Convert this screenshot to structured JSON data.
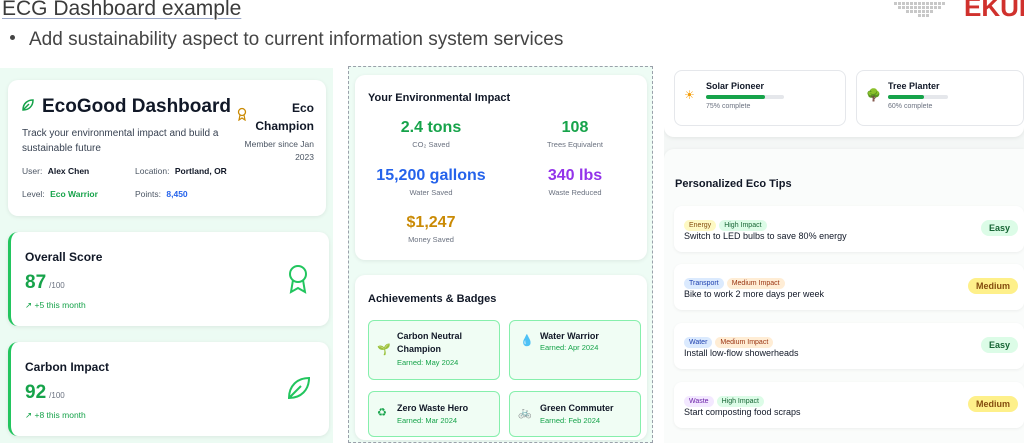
{
  "slide": {
    "title": "ECG Dashboard example",
    "bullet": "Add sustainability aspect to current  information system services"
  },
  "logo": {
    "text": "EKUR",
    "color": "#d0312d"
  },
  "profile": {
    "title": "EcoGood Dashboard",
    "subtitle": "Track your environmental impact and build a sustainable future",
    "badge_title": "Eco Champion",
    "member_since": "Member since Jan 2023",
    "user_label": "User:",
    "user_value": "Alex Chen",
    "location_label": "Location:",
    "location_value": "Portland, OR",
    "level_label": "Level:",
    "level_value": "Eco Warrior",
    "points_label": "Points:",
    "points_value": "8,450"
  },
  "overall": {
    "label": "Overall Score",
    "value": "87",
    "suffix": "/100",
    "delta": "+5 this month"
  },
  "carbon": {
    "label": "Carbon Impact",
    "value": "92",
    "suffix": "/100",
    "delta": "+8 this month"
  },
  "impact": {
    "title": "Your Environmental Impact",
    "stats": [
      {
        "value": "2.4 tons",
        "label": "CO₂ Saved",
        "color": "#16a34a"
      },
      {
        "value": "108",
        "label": "Trees Equivalent",
        "color": "#16a34a"
      },
      {
        "value": "15,200 gallons",
        "label": "Water Saved",
        "color": "#2563eb"
      },
      {
        "value": "340 lbs",
        "label": "Waste Reduced",
        "color": "#9333ea"
      },
      {
        "value": "$1,247",
        "label": "Money Saved",
        "color": "#ca8a04"
      }
    ]
  },
  "achievements": {
    "title": "Achievements & Badges",
    "items": [
      {
        "name": "Carbon Neutral Champion",
        "earned": "Earned: May 2024",
        "icon": "seedling-icon"
      },
      {
        "name": "Water Warrior",
        "earned": "Earned: Apr 2024",
        "icon": "droplet-icon"
      },
      {
        "name": "Zero Waste Hero",
        "earned": "Earned: Mar 2024",
        "icon": "recycle-icon"
      },
      {
        "name": "Green Commuter",
        "earned": "Earned: Feb 2024",
        "icon": "bicycle-icon"
      }
    ]
  },
  "goals": [
    {
      "name": "Solar Pioneer",
      "progress_text": "75% complete",
      "progress": 0.75,
      "icon": "sun-icon"
    },
    {
      "name": "Tree Planter",
      "progress_text": "60% complete",
      "progress": 0.6,
      "icon": "tree-icon"
    }
  ],
  "tips": {
    "title": "Personalized Eco Tips",
    "items": [
      {
        "tags": [
          "Energy",
          "High Impact"
        ],
        "text": "Switch to LED bulbs to save 80% energy",
        "difficulty": "Easy"
      },
      {
        "tags": [
          "Transport",
          "Medium Impact"
        ],
        "text": "Bike to work 2 more days per week",
        "difficulty": "Medium"
      },
      {
        "tags": [
          "Water",
          "Medium Impact"
        ],
        "text": "Install low-flow showerheads",
        "difficulty": "Easy"
      },
      {
        "tags": [
          "Waste",
          "High Impact"
        ],
        "text": "Start composting food scraps",
        "difficulty": "Medium"
      }
    ]
  }
}
